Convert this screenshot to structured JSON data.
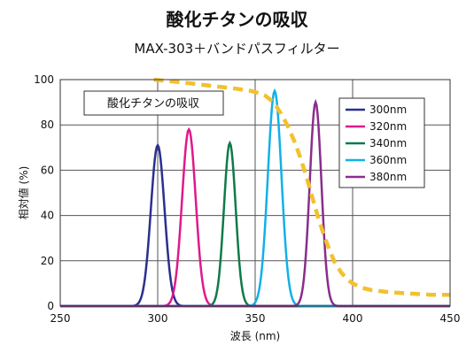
{
  "chart_data": {
    "type": "line",
    "title": "酸化チタンの吸収",
    "subtitle": "MAX-303＋バンドパスフィルター",
    "xlabel": "波長 (nm)",
    "ylabel": "相対値 (%)",
    "xlim": [
      250,
      450
    ],
    "ylim": [
      0,
      100
    ],
    "xticks": [
      "250",
      "300",
      "350",
      "400",
      "450"
    ],
    "yticks": [
      "0",
      "20",
      "40",
      "60",
      "80",
      "100"
    ],
    "grid": true,
    "legend_position": "top-right",
    "series": [
      {
        "name": "300nm",
        "color": "#2b2f8f",
        "peak_x": 300,
        "peak_y": 71,
        "width": 3.5
      },
      {
        "name": "320nm",
        "color": "#e0198a",
        "peak_x": 316,
        "peak_y": 78,
        "width": 3.5
      },
      {
        "name": "340nm",
        "color": "#0f7a4a",
        "peak_x": 337,
        "peak_y": 72,
        "width": 3.0
      },
      {
        "name": "360nm",
        "color": "#12b0e8",
        "peak_x": 360,
        "peak_y": 95,
        "width": 3.5
      },
      {
        "name": "380nm",
        "color": "#8a2d8c",
        "peak_x": 381,
        "peak_y": 90,
        "width": 3.0
      }
    ],
    "absorption": {
      "name": "酸化チタンの吸収",
      "color": "#f2c12e",
      "x": [
        298,
        310,
        320,
        330,
        340,
        348,
        352,
        355,
        358,
        361,
        364,
        367,
        370,
        373,
        376,
        379,
        382,
        385,
        388,
        391,
        394,
        397,
        400,
        405,
        410,
        420,
        430,
        440,
        450
      ],
      "y": [
        100,
        99,
        98,
        97,
        96,
        95,
        94,
        93,
        91,
        88,
        84,
        79,
        73,
        66,
        58,
        49,
        40,
        32,
        25,
        19,
        15,
        12,
        10,
        8,
        7,
        6,
        5.5,
        5,
        5
      ]
    },
    "annotation": "酸化チタンの吸収"
  }
}
